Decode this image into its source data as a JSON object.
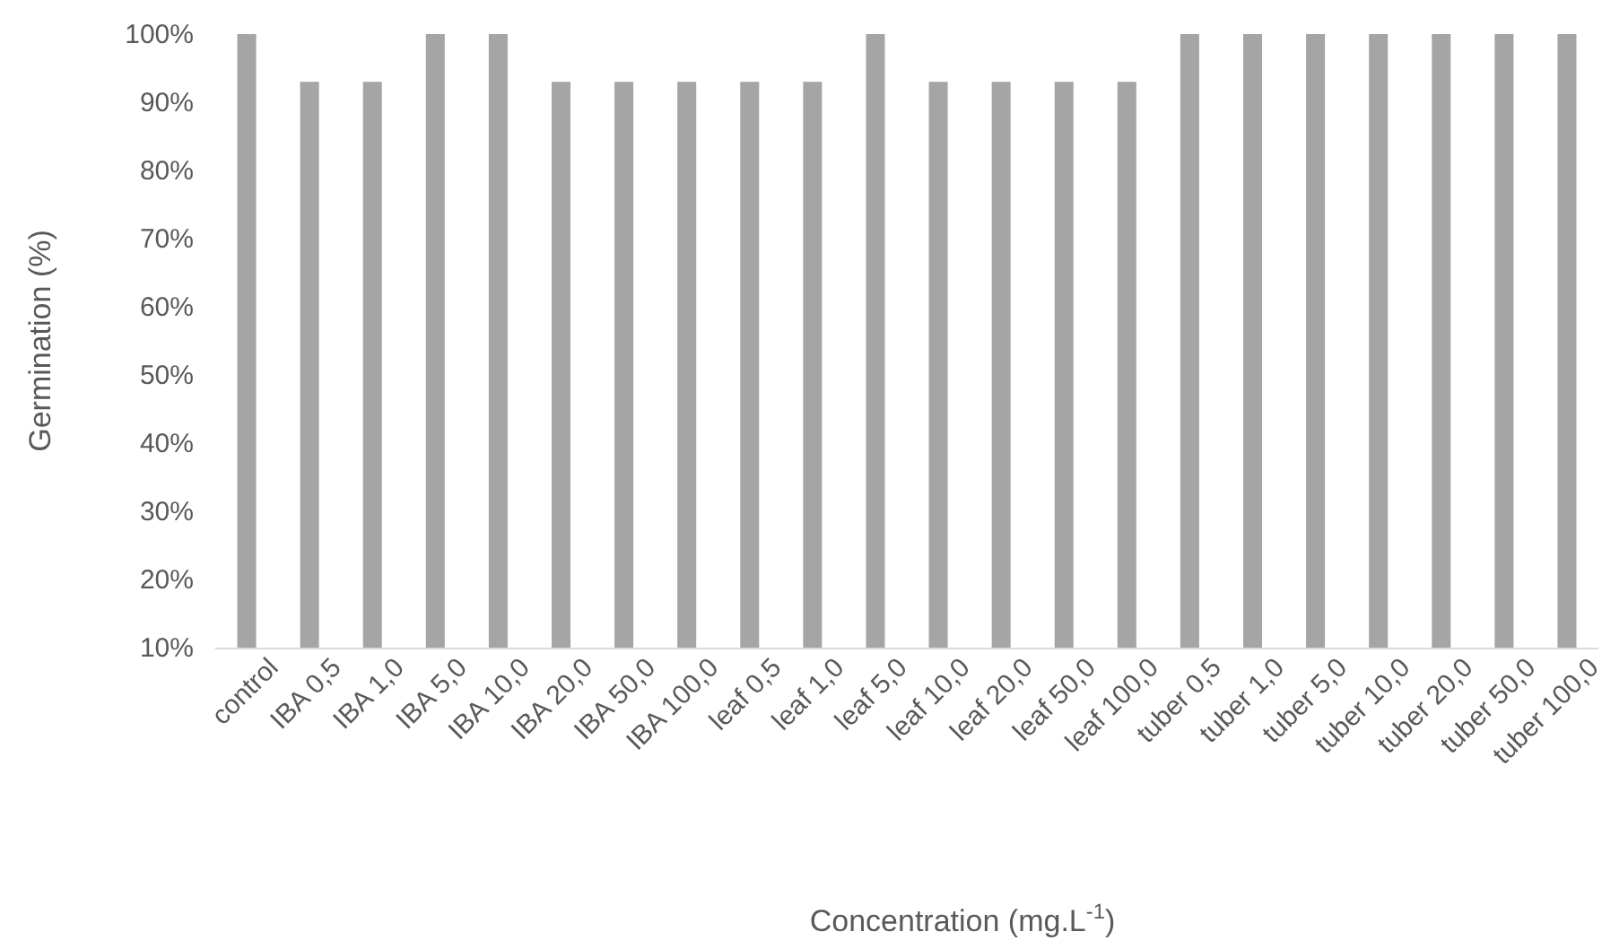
{
  "chart_data": {
    "type": "bar",
    "categories": [
      "control",
      "IBA 0,5",
      "IBA 1,0",
      "IBA 5,0",
      "IBA 10,0",
      "IBA 20,0",
      "IBA 50,0",
      "IBA 100,0",
      "leaf 0,5",
      "leaf 1,0",
      "leaf 5,0",
      "leaf 10,0",
      "leaf 20,0",
      "leaf 50,0",
      "leaf 100,0",
      "tuber 0,5",
      "tuber 1,0",
      "tuber 5,0",
      "tuber 10,0",
      "tuber 20,0",
      "tuber 50,0",
      "tuber 100,0"
    ],
    "values": [
      100,
      93,
      93,
      100,
      100,
      93,
      93,
      93,
      93,
      93,
      100,
      93,
      93,
      93,
      93,
      100,
      100,
      100,
      100,
      100,
      100,
      100
    ],
    "color": "#a5a5a5",
    "ylim": [
      10,
      100
    ],
    "yticks": [
      {
        "value": 10,
        "label": "10%"
      },
      {
        "value": 20,
        "label": "20%"
      },
      {
        "value": 30,
        "label": "30%"
      },
      {
        "value": 40,
        "label": "40%"
      },
      {
        "value": 50,
        "label": "50%"
      },
      {
        "value": 60,
        "label": "60%"
      },
      {
        "value": 70,
        "label": "70%"
      },
      {
        "value": 80,
        "label": "80%"
      },
      {
        "value": 90,
        "label": "90%"
      },
      {
        "value": 100,
        "label": "100%"
      }
    ],
    "xlabel": "Concentration (mg.L$^{-1}$)",
    "ylabel": "Germination (%)"
  }
}
